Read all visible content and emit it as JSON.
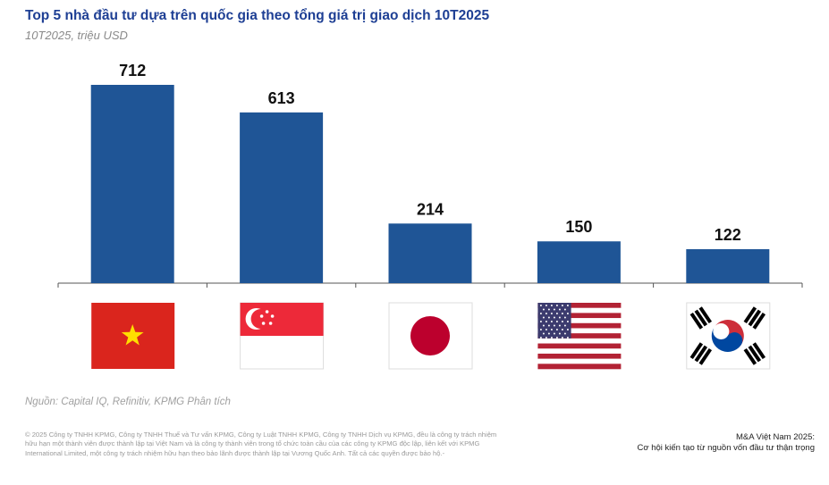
{
  "title": "Top 5 nhà đầu tư dựa trên quốc gia theo tổng giá trị giao dịch 10T2025",
  "subtitle": "10T2025, triệu USD",
  "source": "Nguồn: Capital IQ, Refinitiv, KPMG Phân tích",
  "copyright": "© 2025 Công ty TNHH KPMG, Công ty TNHH Thuế và Tư vấn KPMG, Công ty Luật TNHH KPMG, Công ty TNHH Dịch vụ KPMG, đều là công ty trách nhiệm hữu hạn một thành viên được thành lập tại Việt Nam và là công ty thành viên trong tổ chức toàn cầu của các công ty KPMG độc lập, liên kết với KPMG International Limited, một công ty trách nhiệm hữu hạn theo bảo lãnh được thành lập tại Vương Quốc Anh. Tất cả các quyền được bảo hộ.-",
  "report": {
    "line1": "M&A Việt Nam 2025:",
    "line2": "Cơ hội kiến tạo từ nguồn vốn đầu tư thận trọng"
  },
  "chart_data": {
    "type": "bar",
    "title": "Top 5 nhà đầu tư dựa trên quốc gia theo tổng giá trị giao dịch 10T2025",
    "subtitle": "10T2025, triệu USD",
    "category_icons": [
      "vietnam-flag-icon",
      "singapore-flag-icon",
      "japan-flag-icon",
      "usa-flag-icon",
      "south-korea-flag-icon"
    ],
    "values": [
      712,
      613,
      214,
      150,
      122
    ],
    "data_labels": [
      "712",
      "613",
      "214",
      "150",
      "122"
    ],
    "ylim": [
      0,
      712
    ],
    "grid": false,
    "legend": "none",
    "bar_color": "#1f5596",
    "title_color": "#1e3f94"
  }
}
